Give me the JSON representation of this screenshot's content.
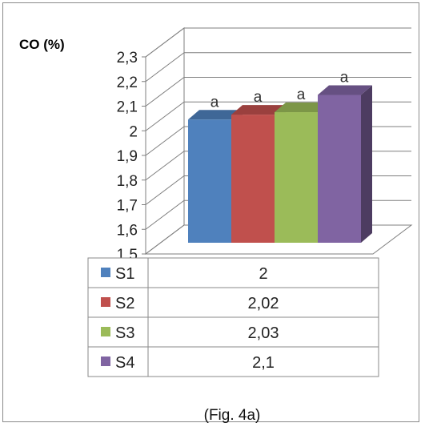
{
  "chart_data": {
    "type": "bar",
    "ylabel": "CO (%)",
    "ylim": [
      1.5,
      2.3
    ],
    "yticks": [
      "1,5",
      "1,6",
      "1,7",
      "1,8",
      "1,9",
      "2",
      "2,1",
      "2,2",
      "2,3"
    ],
    "grid": true,
    "series": [
      {
        "name": "S1",
        "value": 2,
        "value_label": "2",
        "letter": "a",
        "color": "#4f81bd"
      },
      {
        "name": "S2",
        "value": 2.02,
        "value_label": "2,02",
        "letter": "a",
        "color": "#c0504d"
      },
      {
        "name": "S3",
        "value": 2.03,
        "value_label": "2,03",
        "letter": "a",
        "color": "#9bbb59"
      },
      {
        "name": "S4",
        "value": 2.1,
        "value_label": "2,1",
        "letter": "a",
        "color": "#8064a2"
      }
    ],
    "data_table": true
  },
  "caption": "(Fig. 4a)"
}
